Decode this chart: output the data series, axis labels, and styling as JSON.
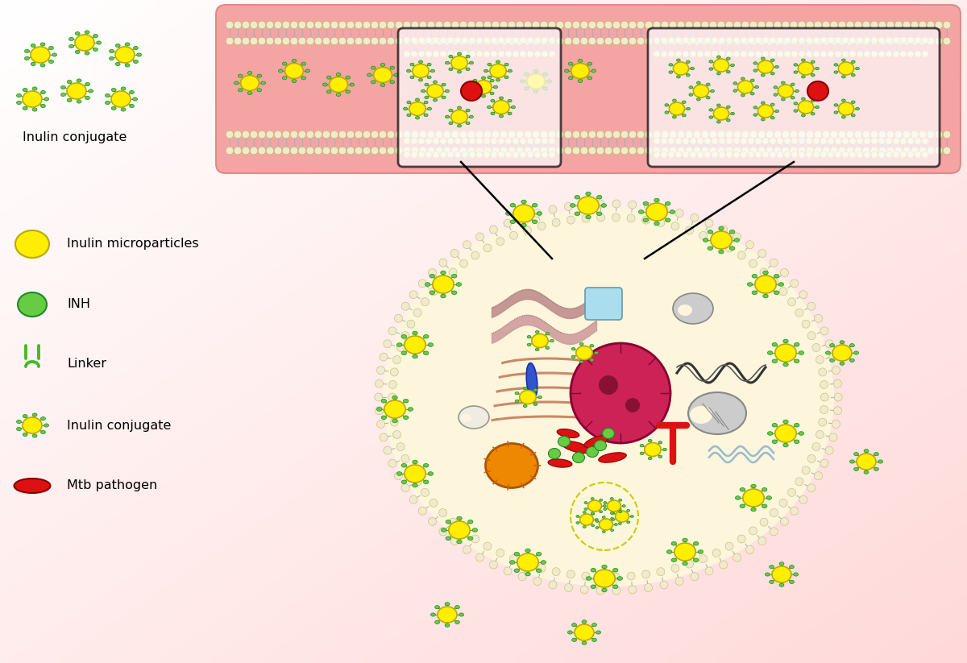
{
  "bg_gradient_colors": [
    "#ffffff",
    "#f5d5d5"
  ],
  "pink_box_color": "#f5a0a0",
  "cell_fill": "#fdf5dc",
  "membrane_bead_color": "#f0ead0",
  "membrane_bead_border": "#c8b860",
  "membrane_tail_color": "#aaaacc",
  "yellow_particle": "#ffee00",
  "yellow_particle_border": "#bbaa00",
  "green_dot": "#66cc44",
  "green_dot_border": "#228822",
  "red_pathogen": "#dd1111",
  "linker_color": "#44bb22",
  "legend_labels": [
    "Inulin microparticles",
    "INH",
    "Linker",
    "Inulin conjugate",
    "Mtb pathogen"
  ],
  "top_label": "Inulin conjugate"
}
